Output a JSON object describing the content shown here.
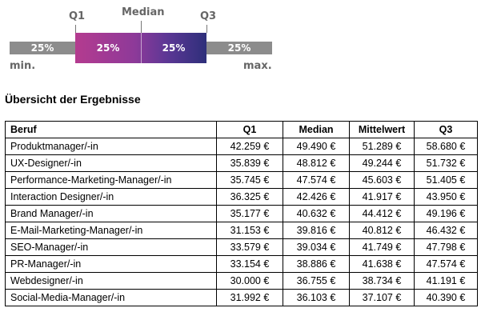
{
  "legend": {
    "q1_label": "Q1",
    "median_label": "Median",
    "q3_label": "Q3",
    "min_label": "min.",
    "max_label": "max.",
    "segments": [
      "25%",
      "25%",
      "25%",
      "25%"
    ]
  },
  "title": "Übersicht der Ergebnisse",
  "table": {
    "headers": [
      "Beruf",
      "Q1",
      "Median",
      "Mittelwert",
      "Q3"
    ],
    "rows": [
      [
        "Produktmanager/-in",
        "42.259 €",
        "49.490 €",
        "51.289 €",
        "58.680 €"
      ],
      [
        "UX-Designer/-in",
        "35.839 €",
        "48.812 €",
        "49.244 €",
        "51.732 €"
      ],
      [
        "Performance-Marketing-Manager/-in",
        "35.745 €",
        "47.574 €",
        "45.603 €",
        "51.405 €"
      ],
      [
        "Interaction Designer/-in",
        "36.325 €",
        "42.426 €",
        "41.917 €",
        "43.950 €"
      ],
      [
        "Brand Manager/-in",
        "35.177 €",
        "40.632 €",
        "44.412 €",
        "49.196 €"
      ],
      [
        "E-Mail-Marketing-Manager/-in",
        "31.153 €",
        "39.816 €",
        "40.812 €",
        "46.432 €"
      ],
      [
        "SEO-Manager/-in",
        "33.579 €",
        "39.034 €",
        "41.749 €",
        "47.798 €"
      ],
      [
        "PR-Manager/-in",
        "33.154 €",
        "38.886 €",
        "41.638 €",
        "47.574 €"
      ],
      [
        "Webdesigner/-in",
        "30.000 €",
        "36.755 €",
        "38.734 €",
        "41.191 €"
      ],
      [
        "Social-Media-Manager/-in",
        "31.992 €",
        "36.103 €",
        "37.107 €",
        "40.390 €"
      ]
    ]
  }
}
